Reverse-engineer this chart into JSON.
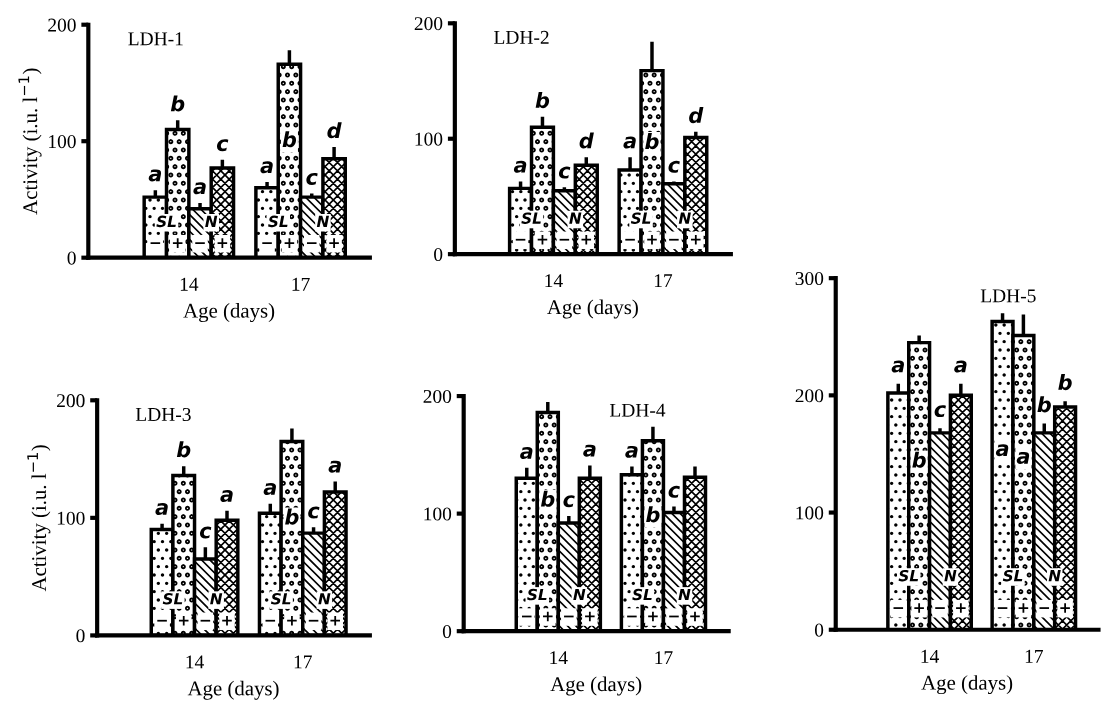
{
  "chart_data": [
    {
      "type": "bar",
      "title": "LDH-1",
      "categories": [
        "14",
        "17"
      ],
      "xlabel": "Age (days)",
      "ylabel": "Activity (i.u. l$^{−1}$)",
      "ylim": [
        0,
        200
      ],
      "yticks": [
        0,
        100,
        200
      ],
      "annotations": [
        "SL",
        "N",
        "−",
        "+"
      ],
      "series": [
        {
          "color": "#000000",
          "values": [
            52,
            60
          ],
          "errors": [
            6,
            5
          ],
          "value_labels": [
            "a",
            "a"
          ]
        },
        {
          "color": "#000000",
          "values": [
            110,
            166
          ],
          "errors": [
            8,
            12
          ],
          "value_labels": [
            "b",
            "b"
          ]
        },
        {
          "color": "#000000",
          "values": [
            42,
            52
          ],
          "errors": [
            5,
            3
          ],
          "value_labels": [
            "a",
            "c"
          ]
        },
        {
          "color": "#000000",
          "values": [
            77,
            85
          ],
          "errors": [
            7,
            10
          ],
          "value_labels": [
            "c",
            "d"
          ]
        }
      ]
    },
    {
      "type": "bar",
      "title": "LDH-2",
      "categories": [
        "14",
        "17"
      ],
      "xlabel": "Age (days)",
      "ylim": [
        0,
        200
      ],
      "yticks": [
        0,
        100,
        200
      ],
      "annotations": [
        "SL",
        "N",
        "−",
        "+"
      ],
      "series": [
        {
          "color": "#000000",
          "values": [
            57,
            73
          ],
          "errors": [
            6,
            11
          ],
          "value_labels": [
            "a",
            "a"
          ]
        },
        {
          "color": "#000000",
          "values": [
            110,
            159
          ],
          "errors": [
            9,
            25
          ],
          "value_labels": [
            "b",
            "b"
          ]
        },
        {
          "color": "#000000",
          "values": [
            55,
            61
          ],
          "errors": [
            3,
            2
          ],
          "value_labels": [
            "c",
            "c"
          ]
        },
        {
          "color": "#000000",
          "values": [
            77,
            101
          ],
          "errors": [
            7,
            5
          ],
          "value_labels": [
            "d",
            "d"
          ]
        }
      ]
    },
    {
      "type": "bar",
      "title": "LDH-3",
      "categories": [
        "14",
        "17"
      ],
      "xlabel": "Age (days)",
      "ylabel": "Activity (i.u. l$^{−1}$)",
      "ylim": [
        0,
        200
      ],
      "yticks": [
        0,
        100,
        200
      ],
      "annotations": [
        "SL",
        "N",
        "−",
        "+"
      ],
      "series": [
        {
          "color": "#000000",
          "values": [
            90,
            104
          ],
          "errors": [
            5,
            8
          ],
          "value_labels": [
            "a",
            "a"
          ]
        },
        {
          "color": "#000000",
          "values": [
            136,
            165
          ],
          "errors": [
            8,
            11
          ],
          "value_labels": [
            "b",
            "b"
          ]
        },
        {
          "color": "#000000",
          "values": [
            65,
            87
          ],
          "errors": [
            10,
            5
          ],
          "value_labels": [
            "c",
            "c"
          ]
        },
        {
          "color": "#000000",
          "values": [
            98,
            122
          ],
          "errors": [
            8,
            9
          ],
          "value_labels": [
            "a",
            "a"
          ]
        }
      ]
    },
    {
      "type": "bar",
      "title": "LDH-5",
      "categories": [
        "14",
        "17"
      ],
      "xlabel": "Age (days)",
      "ylim": [
        0,
        300
      ],
      "yticks": [
        0,
        100,
        200,
        300
      ],
      "annotations": [
        "SL",
        "N",
        "−",
        "+"
      ],
      "series": [
        {
          "color": "#000000",
          "values": [
            202,
            263
          ],
          "errors": [
            8,
            7
          ],
          "value_labels": [
            "a",
            "a"
          ]
        },
        {
          "color": "#000000",
          "values": [
            245,
            251
          ],
          "errors": [
            6,
            18
          ],
          "value_labels": [
            "b",
            "a"
          ]
        },
        {
          "color": "#000000",
          "values": [
            168,
            168
          ],
          "errors": [
            4,
            8
          ],
          "value_labels": [
            "c",
            "b"
          ]
        },
        {
          "color": "#000000",
          "values": [
            200,
            190
          ],
          "errors": [
            10,
            5
          ],
          "value_labels": [
            "a",
            "b"
          ]
        }
      ]
    },
    {
      "type": "bar",
      "title": "LDH-4",
      "categories": [
        "14",
        "17"
      ],
      "xlabel": "Age (days)",
      "ylim": [
        0,
        200
      ],
      "yticks": [
        0,
        100,
        200
      ],
      "annotations": [
        "SL",
        "N",
        "−",
        "+"
      ],
      "series": [
        {
          "color": "#000000",
          "values": [
            130,
            133
          ],
          "errors": [
            9,
            7
          ],
          "value_labels": [
            "a",
            "a"
          ]
        },
        {
          "color": "#000000",
          "values": [
            186,
            162
          ],
          "errors": [
            9,
            12
          ],
          "value_labels": [
            "b",
            "b"
          ]
        },
        {
          "color": "#000000",
          "values": [
            92,
            101
          ],
          "errors": [
            6,
            5
          ],
          "value_labels": [
            "c",
            "c"
          ]
        },
        {
          "color": "#000000",
          "values": [
            130,
            131
          ],
          "errors": [
            11,
            9
          ],
          "value_labels": [
            "a",
            null
          ]
        }
      ]
    }
  ]
}
